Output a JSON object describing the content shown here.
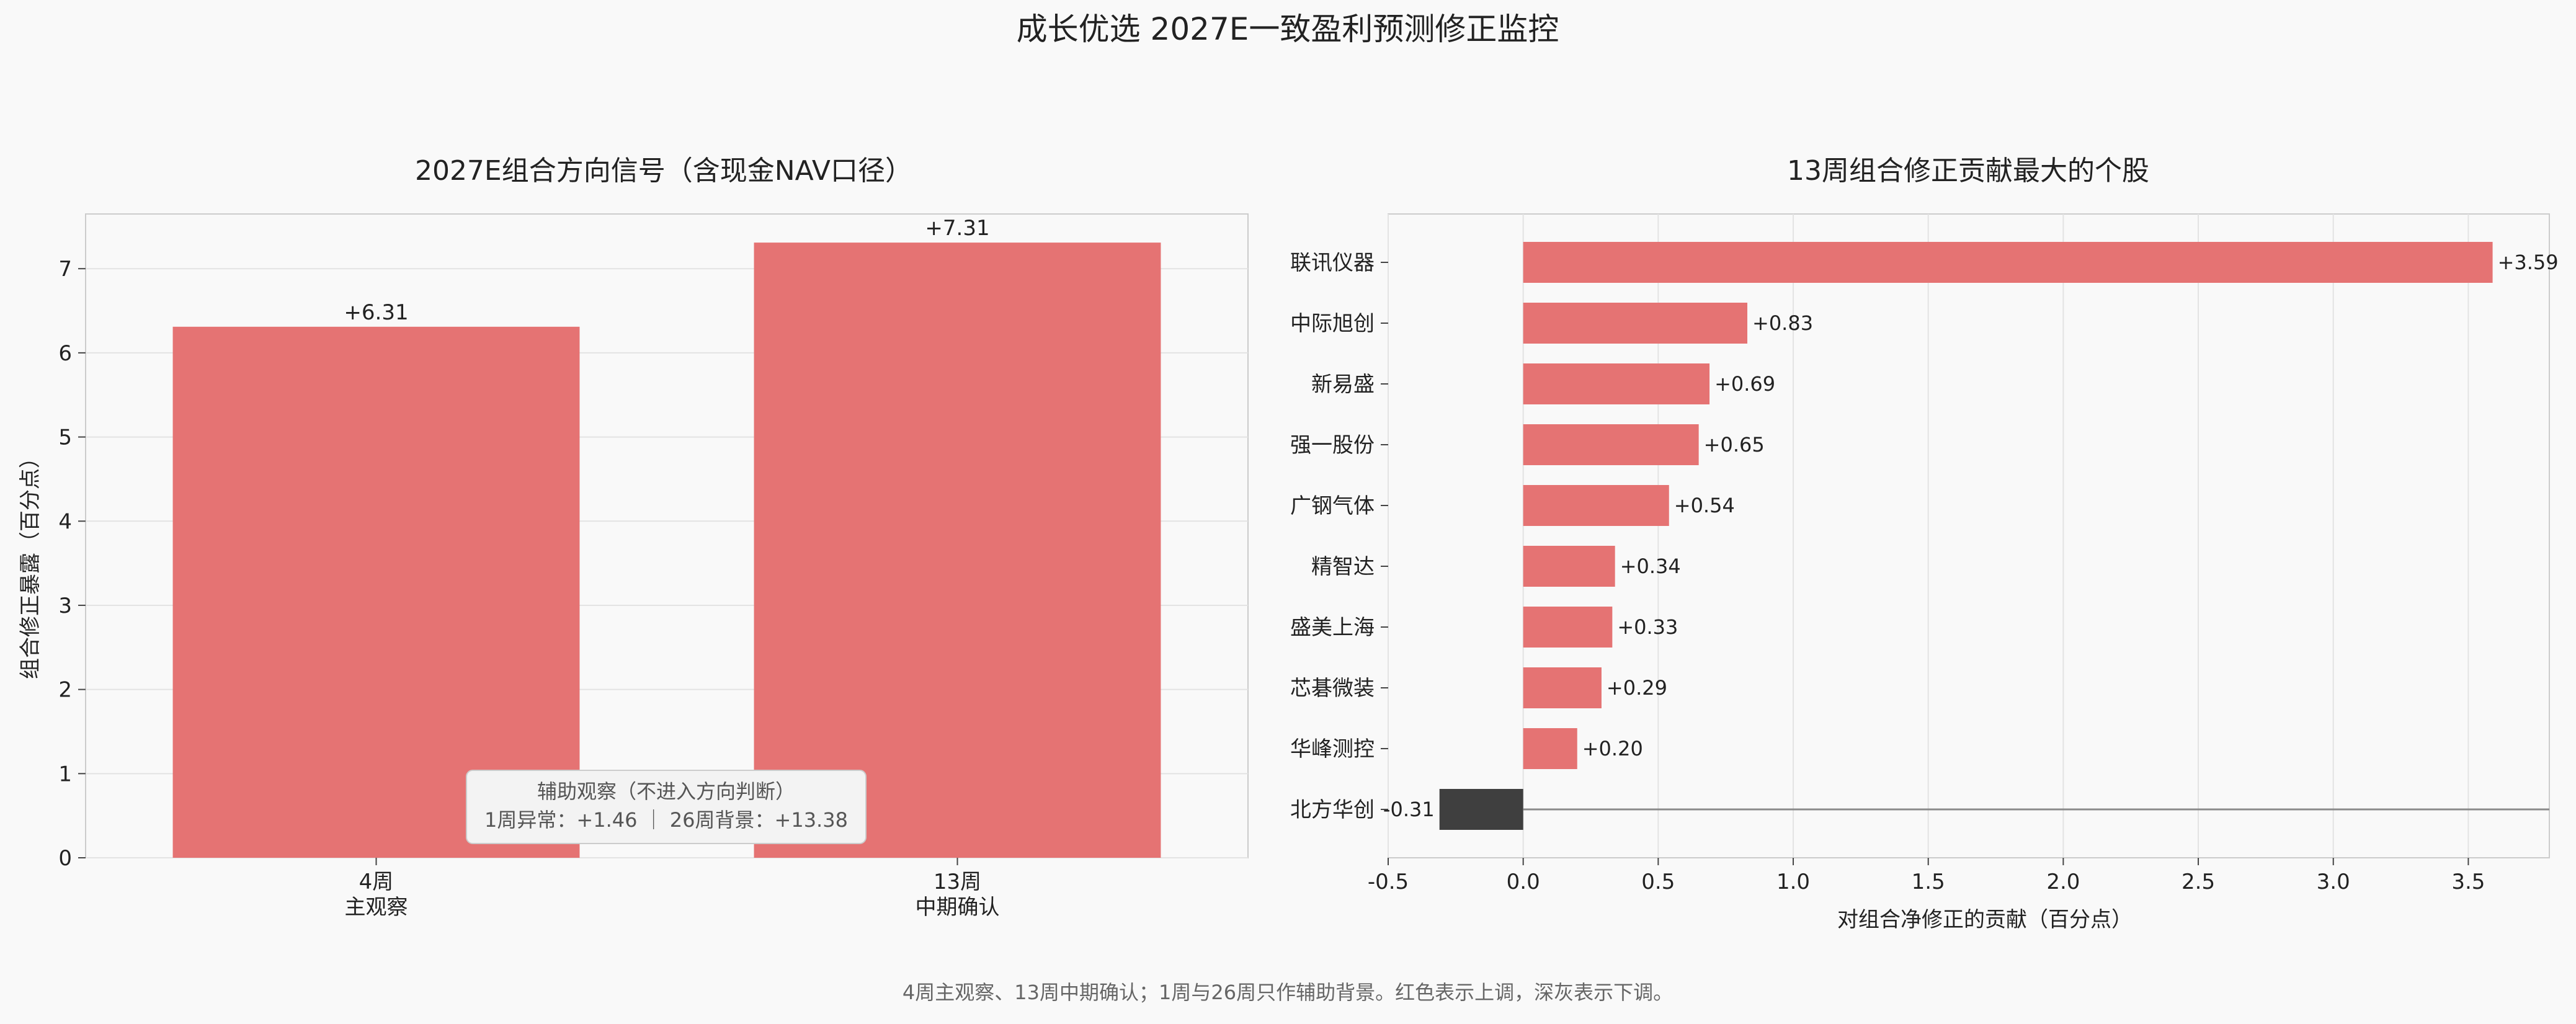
{
  "figure": {
    "title": "成长优选  2027E一致盈利预测修正监控",
    "footer": "4周主观察、13周中期确认；1周与26周只作辅助背景。红色表示上调，深灰表示下调。"
  },
  "colors": {
    "up": "#e57373",
    "down": "#3f3f3f",
    "bg": "#f9f9f9",
    "grid": "#e3e3e3",
    "axis": "#cccccc"
  },
  "chart_data": [
    {
      "type": "bar",
      "title": "2027E组合方向信号（含现金NAV口径）",
      "ylabel": "组合修正暴露（百分点）",
      "xlabel": "",
      "categories": [
        "4周",
        "13周"
      ],
      "category_sublabels": [
        "主观察",
        "中期确认"
      ],
      "values": [
        6.31,
        7.31
      ],
      "value_labels": [
        "+6.31",
        "+7.31"
      ],
      "ylim": [
        0,
        7.65
      ],
      "yticks": [
        0,
        1,
        2,
        3,
        4,
        5,
        6,
        7
      ],
      "grid": true,
      "annotation": {
        "line1": "辅助观察（不进入方向判断）",
        "line2": "1周异常：+1.46 ｜ 26周背景：+13.38"
      }
    },
    {
      "type": "bar",
      "orientation": "horizontal",
      "title": "13周组合修正贡献最大的个股",
      "xlabel": "对组合净修正的贡献（百分点）",
      "ylabel": "",
      "categories": [
        "联讯仪器",
        "中际旭创",
        "新易盛",
        "强一股份",
        "广钢气体",
        "精智达",
        "盛美上海",
        "芯碁微装",
        "华峰测控",
        "北方华创"
      ],
      "values": [
        3.59,
        0.83,
        0.69,
        0.65,
        0.54,
        0.34,
        0.33,
        0.29,
        0.2,
        -0.31
      ],
      "value_labels": [
        "+3.59",
        "+0.83",
        "+0.69",
        "+0.65",
        "+0.54",
        "+0.34",
        "+0.33",
        "+0.29",
        "+0.20",
        "-0.31"
      ],
      "xlim": [
        -0.5,
        3.8
      ],
      "xticks": [
        -0.5,
        0.0,
        0.5,
        1.0,
        1.5,
        2.0,
        2.5,
        3.0,
        3.5
      ],
      "xtick_labels": [
        "-0.5",
        "0.0",
        "0.5",
        "1.0",
        "1.5",
        "2.0",
        "2.5",
        "3.0",
        "3.5"
      ],
      "grid": true
    }
  ]
}
